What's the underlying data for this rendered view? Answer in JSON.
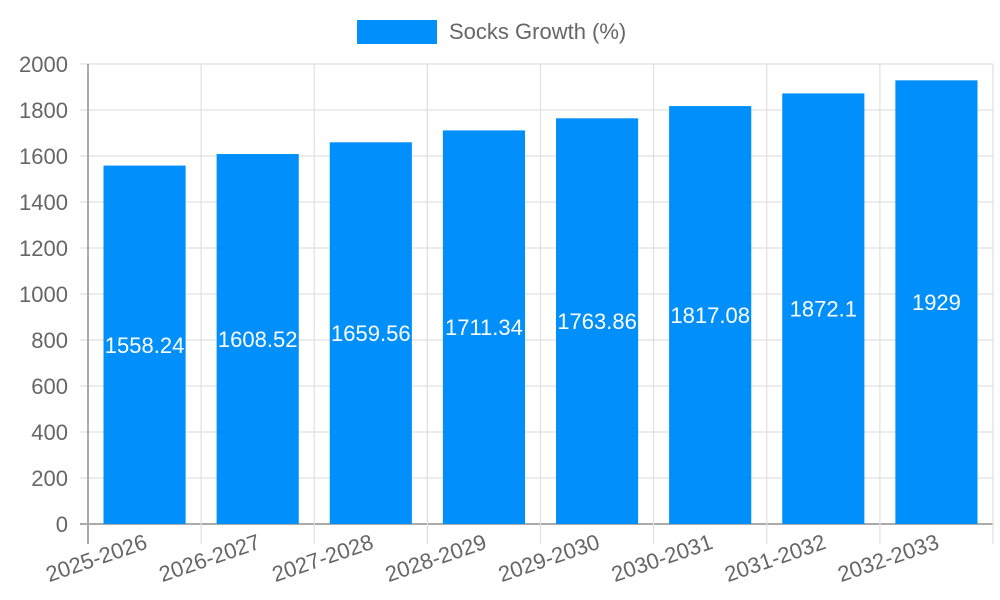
{
  "legend": {
    "label": "Socks Growth (%)",
    "color": "#008ffb"
  },
  "chart_data": {
    "type": "bar",
    "title": "",
    "xlabel": "",
    "ylabel": "",
    "categories": [
      "2025-2026",
      "2026-2027",
      "2027-2028",
      "2028-2029",
      "2029-2030",
      "2030-2031",
      "2031-2032",
      "2032-2033"
    ],
    "series": [
      {
        "name": "Socks Growth (%)",
        "color": "#008ffb",
        "values": [
          1558.24,
          1608.52,
          1659.56,
          1711.34,
          1763.86,
          1817.08,
          1872.1,
          1929
        ]
      }
    ],
    "data_labels": [
      "1558.24",
      "1608.52",
      "1659.56",
      "1711.34",
      "1763.86",
      "1817.08",
      "1872.1",
      "1929"
    ],
    "ylim": [
      0,
      2000
    ],
    "yticks": [
      0,
      200,
      400,
      600,
      800,
      1000,
      1200,
      1400,
      1600,
      1800,
      2000
    ],
    "grid": true,
    "legend_position": "top"
  }
}
